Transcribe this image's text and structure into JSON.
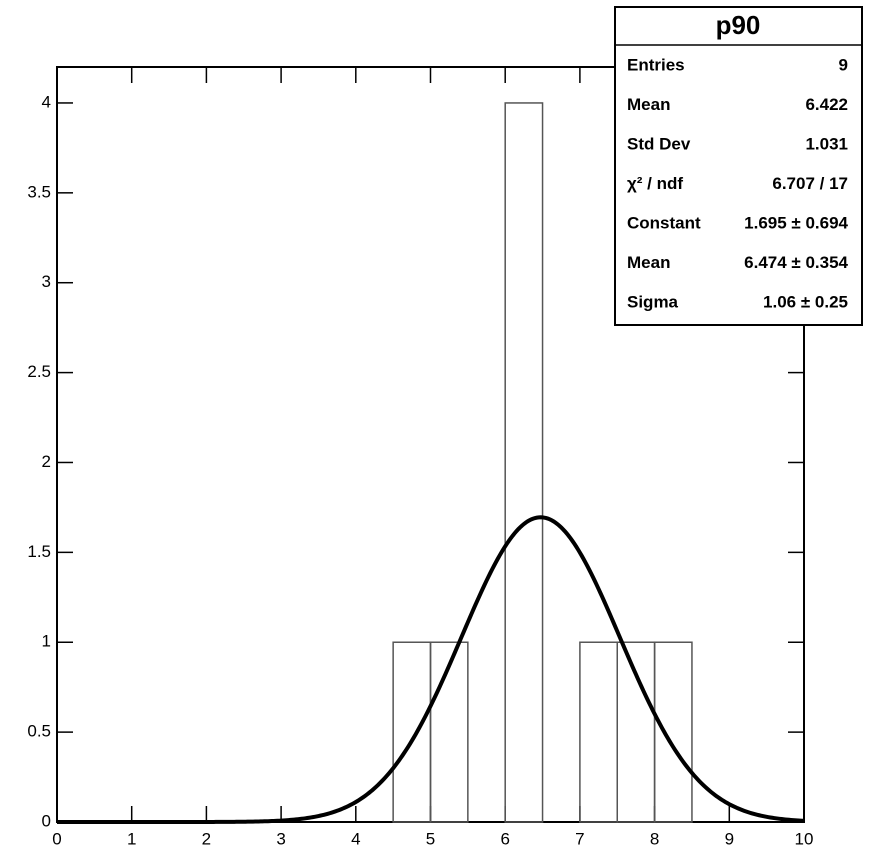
{
  "chart_data": {
    "type": "histogram",
    "bins": [
      0,
      0.5,
      1,
      1.5,
      2,
      2.5,
      3,
      3.5,
      4,
      4.5,
      5,
      5.5,
      6,
      6.5,
      7,
      7.5,
      8,
      8.5,
      9,
      9.5,
      10
    ],
    "counts": [
      0,
      0,
      0,
      0,
      0,
      0,
      0,
      0,
      0,
      1,
      1,
      0,
      4,
      0,
      1,
      1,
      1,
      0,
      0,
      0
    ],
    "color": "#555555",
    "xlim": [
      0,
      10
    ],
    "xticks": [
      0,
      1,
      2,
      3,
      4,
      5,
      6,
      7,
      8,
      9,
      10
    ],
    "ylim": [
      0,
      4.2
    ],
    "yticks": [
      0,
      0.5,
      1,
      1.5,
      2,
      2.5,
      3,
      3.5,
      4
    ],
    "fit": {
      "constant": 1.695,
      "mean": 6.474,
      "sigma": 1.06,
      "color": "#000000"
    },
    "stats": {
      "title": "p90",
      "rows": [
        {
          "label": "Entries",
          "value": "9"
        },
        {
          "label": "Mean",
          "value": "6.422"
        },
        {
          "label": "Std Dev",
          "value": "1.031"
        },
        {
          "label": "χ² / ndf",
          "value": "6.707 / 17"
        },
        {
          "label": "Constant",
          "value": "1.695 ± 0.694"
        },
        {
          "label": "Mean",
          "value": "6.474 ± 0.354"
        },
        {
          "label": "Sigma",
          "value": "1.06 ± 0.25"
        }
      ]
    }
  }
}
